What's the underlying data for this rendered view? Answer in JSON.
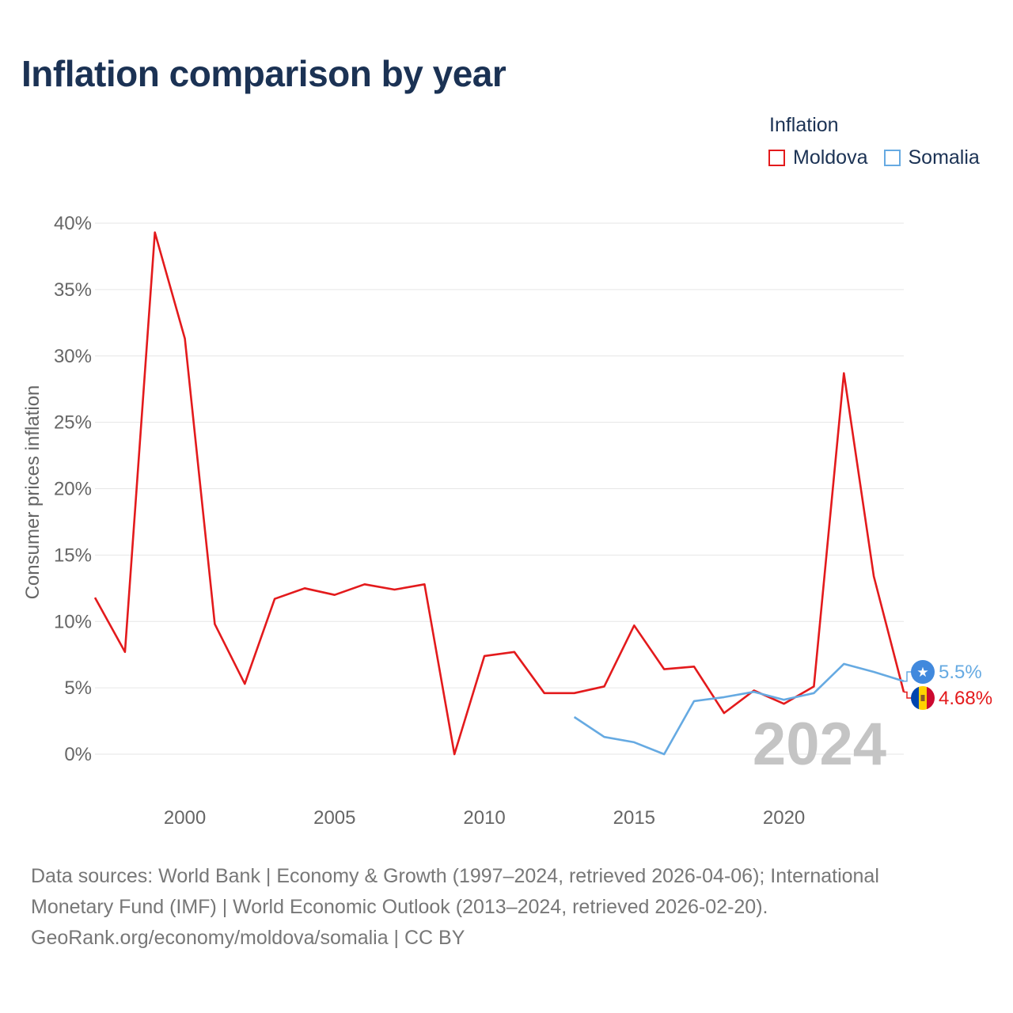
{
  "title": "Inflation comparison by year",
  "legend": {
    "title": "Inflation",
    "items": [
      {
        "label": "Moldova",
        "color": "#e31a1c"
      },
      {
        "label": "Somalia",
        "color": "#66aae2"
      }
    ]
  },
  "chart_data": {
    "type": "line",
    "title": "Inflation comparison by year",
    "xlabel": "",
    "ylabel": "Consumer prices inflation",
    "xlim": [
      1997,
      2024
    ],
    "ylim": [
      0,
      40
    ],
    "x_ticks": [
      2000,
      2005,
      2010,
      2015,
      2020
    ],
    "y_ticks": [
      0,
      5,
      10,
      15,
      20,
      25,
      30,
      35,
      40
    ],
    "y_tick_labels": [
      "0%",
      "5%",
      "10%",
      "15%",
      "20%",
      "25%",
      "30%",
      "35%",
      "40%"
    ],
    "grid": true,
    "current_year": "2024",
    "series": [
      {
        "name": "Moldova",
        "color": "#e31a1c",
        "x": [
          1997,
          1998,
          1999,
          2000,
          2001,
          2002,
          2003,
          2004,
          2005,
          2006,
          2007,
          2008,
          2009,
          2010,
          2011,
          2012,
          2013,
          2014,
          2015,
          2016,
          2017,
          2018,
          2019,
          2020,
          2021,
          2022,
          2023,
          2024
        ],
        "values": [
          11.8,
          7.7,
          39.3,
          31.3,
          9.8,
          5.3,
          11.7,
          12.5,
          12.0,
          12.8,
          12.4,
          12.8,
          0.0,
          7.4,
          7.7,
          4.6,
          4.6,
          5.1,
          9.7,
          6.4,
          6.6,
          3.1,
          4.8,
          3.8,
          5.1,
          28.7,
          13.4,
          4.68
        ],
        "end_label": "4.68%"
      },
      {
        "name": "Somalia",
        "color": "#66aae2",
        "x": [
          2013,
          2014,
          2015,
          2016,
          2017,
          2018,
          2019,
          2020,
          2021,
          2022,
          2023,
          2024
        ],
        "values": [
          2.8,
          1.3,
          0.9,
          0.0,
          4.0,
          4.3,
          4.7,
          4.1,
          4.6,
          6.8,
          6.2,
          5.5
        ],
        "end_label": "5.5%"
      }
    ]
  },
  "sources": {
    "line1": "Data sources: World Bank | Economy & Growth (1997–2024, retrieved 2026-04-06); International",
    "line2": "Monetary Fund (IMF) | World Economic Outlook (2013–2024, retrieved 2026-02-20).",
    "line3": "GeoRank.org/economy/moldova/somalia | CC BY"
  }
}
